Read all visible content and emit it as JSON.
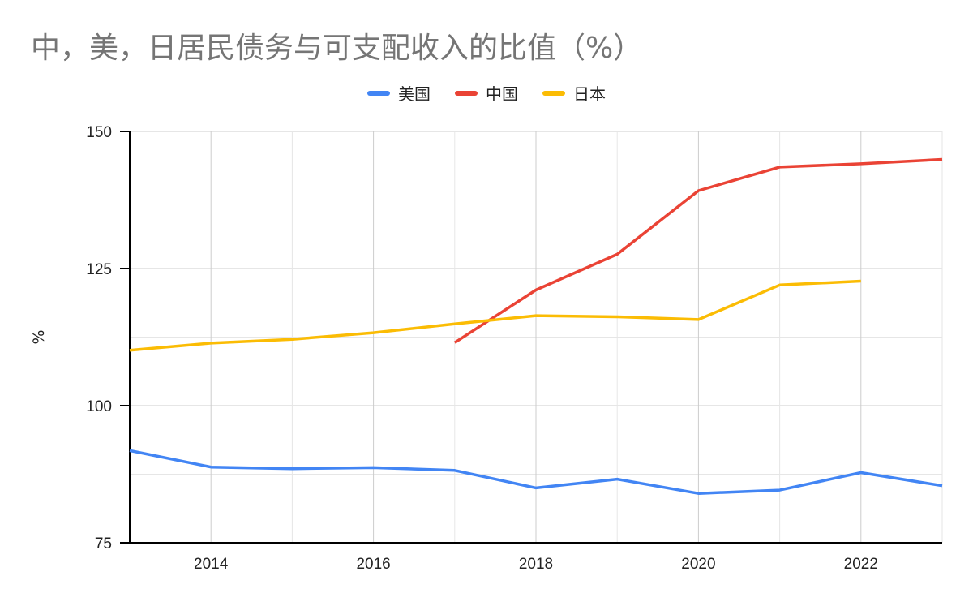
{
  "chart_data": {
    "type": "line",
    "title": "中，美，日居民债务与可支配收入的比值（%）",
    "ylabel": "%",
    "xlabel": "",
    "xlim": [
      2013,
      2023
    ],
    "ylim": [
      75,
      150
    ],
    "y_ticks": [
      "150",
      "125",
      "100",
      "75"
    ],
    "x_ticks": [
      "2014",
      "2016",
      "2018",
      "2020",
      "2022"
    ],
    "legend_position": "top-center",
    "grid": true,
    "series": [
      {
        "name": "美国",
        "color": "#4285F4",
        "x": [
          2013,
          2014,
          2015,
          2016,
          2017,
          2018,
          2019,
          2020,
          2021,
          2022,
          2023
        ],
        "values": [
          91.8,
          88.8,
          88.5,
          88.7,
          88.2,
          85.0,
          86.6,
          84.0,
          84.6,
          87.8,
          85.4
        ]
      },
      {
        "name": "中国",
        "color": "#EA4335",
        "x": [
          2017,
          2018,
          2019,
          2020,
          2021,
          2022,
          2023
        ],
        "values": [
          111.5,
          121.1,
          127.6,
          139.2,
          143.5,
          144.1,
          144.9
        ]
      },
      {
        "name": "日本",
        "color": "#FBBC04",
        "x": [
          2013,
          2014,
          2015,
          2016,
          2017,
          2018,
          2019,
          2020,
          2021,
          2022
        ],
        "values": [
          110.1,
          111.4,
          112.1,
          113.3,
          114.9,
          116.4,
          116.2,
          115.7,
          122.0,
          122.7
        ]
      }
    ]
  }
}
